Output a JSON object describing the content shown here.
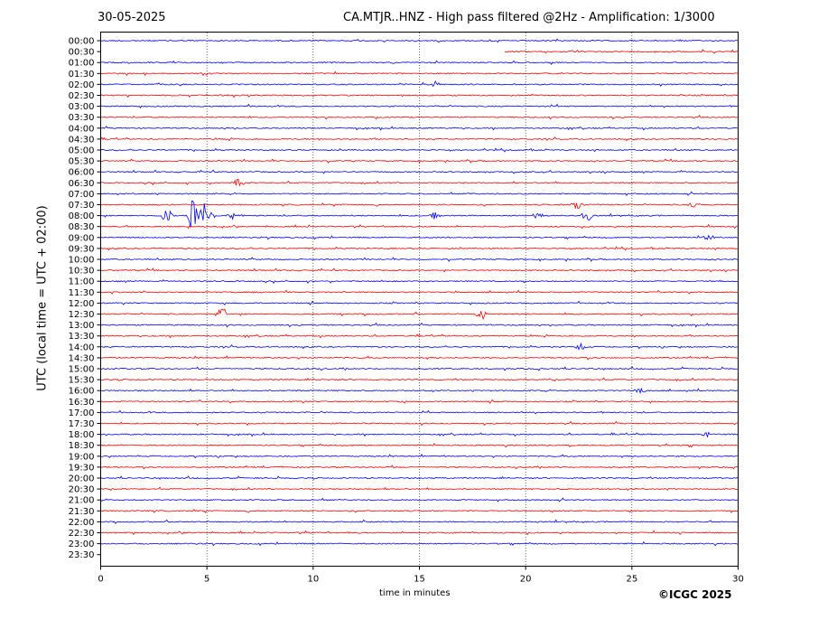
{
  "header": {
    "date": "30-05-2025",
    "title": "CA.MTJR..HNZ - High pass filtered @2Hz - Amplification: 1/3000"
  },
  "footer": {
    "copyright": "©ICGC 2025"
  },
  "chart_data": {
    "type": "line",
    "title": "CA.MTJR..HNZ - High pass filtered @2Hz - Amplification: 1/3000",
    "xlabel": "time in minutes",
    "ylabel": "UTC (local time = UTC + 02:00)",
    "xlim": [
      0,
      30
    ],
    "xticks": [
      0,
      5,
      10,
      15,
      20,
      25,
      30
    ],
    "x_gridlines": [
      5,
      10,
      15,
      20,
      25
    ],
    "grid": "vertical dotted lines",
    "row_labels": [
      "00:00",
      "00:30",
      "01:00",
      "01:30",
      "02:00",
      "02:30",
      "03:00",
      "03:30",
      "04:00",
      "04:30",
      "05:00",
      "05:30",
      "06:00",
      "06:30",
      "07:00",
      "07:30",
      "08:00",
      "08:30",
      "09:00",
      "09:30",
      "10:00",
      "10:30",
      "11:00",
      "11:30",
      "12:00",
      "12:30",
      "13:00",
      "13:30",
      "14:00",
      "14:30",
      "15:00",
      "15:30",
      "16:00",
      "16:30",
      "17:00",
      "17:30",
      "18:00",
      "18:30",
      "19:00",
      "19:30",
      "20:00",
      "20:30",
      "21:00",
      "21:30",
      "22:00",
      "22:30",
      "23:00",
      "23:30"
    ],
    "trace_colors": [
      "#0000ff",
      "#ff0000"
    ],
    "trace_extent": {
      "00:00": [
        0,
        30
      ],
      "00:30": [
        19,
        30
      ],
      "23:00": [
        0,
        30
      ],
      "23:30": [
        0,
        0
      ]
    },
    "events": [
      {
        "row": "07:30",
        "minute": 22.4,
        "amplitude": 0.9
      },
      {
        "row": "07:30",
        "minute": 27.9,
        "amplitude": 0.7
      },
      {
        "row": "08:00",
        "minute": 3.1,
        "amplitude": 1.1
      },
      {
        "row": "08:00",
        "minute": 4.3,
        "amplitude": 2.5
      },
      {
        "row": "08:00",
        "minute": 4.8,
        "amplitude": 2.0
      },
      {
        "row": "08:00",
        "minute": 5.1,
        "amplitude": 1.0
      },
      {
        "row": "08:00",
        "minute": 6.2,
        "amplitude": 0.5
      },
      {
        "row": "08:00",
        "minute": 15.7,
        "amplitude": 0.6
      },
      {
        "row": "08:00",
        "minute": 20.6,
        "amplitude": 0.7
      },
      {
        "row": "08:00",
        "minute": 22.9,
        "amplitude": 0.9
      },
      {
        "row": "06:30",
        "minute": 6.5,
        "amplitude": 0.6
      },
      {
        "row": "02:00",
        "minute": 15.8,
        "amplitude": 0.5
      },
      {
        "row": "12:30",
        "minute": 5.7,
        "amplitude": 1.2
      },
      {
        "row": "12:30",
        "minute": 17.9,
        "amplitude": 0.9
      },
      {
        "row": "14:00",
        "minute": 22.6,
        "amplitude": 0.6
      },
      {
        "row": "16:00",
        "minute": 25.4,
        "amplitude": 0.5
      },
      {
        "row": "18:00",
        "minute": 28.5,
        "amplitude": 0.4
      },
      {
        "row": "09:00",
        "minute": 28.6,
        "amplitude": 0.4
      }
    ]
  }
}
